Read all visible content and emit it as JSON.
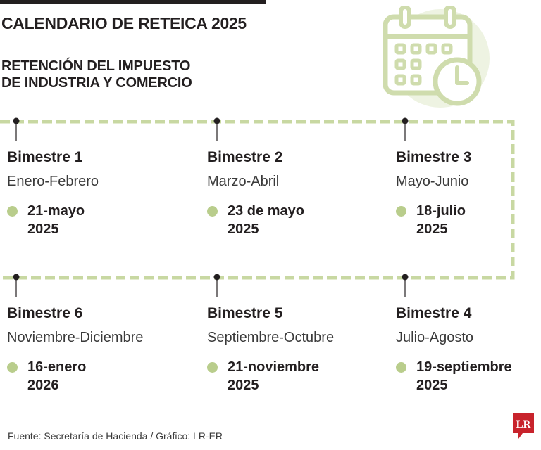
{
  "title": "CALENDARIO DE RETEICA 2025",
  "subtitle_lines": [
    "RETENCIÓN DEL IMPUESTO",
    "DE INDUSTRIA Y COMERCIO"
  ],
  "icons": {
    "calendar": "calendar-clock-icon",
    "bullet": "dot-icon",
    "logo": "lr-logo-icon"
  },
  "colors": {
    "accent": "#cfdcad",
    "bullet": "#b9cd8c",
    "timeline": "#c8d8a2",
    "logo": "#c8232c",
    "text": "#231f20"
  },
  "periods": [
    {
      "bimester": "Bimestre 1",
      "months": "Enero-Febrero",
      "date": "21-mayo",
      "year": "2025"
    },
    {
      "bimester": "Bimestre 2",
      "months": "Marzo-Abril",
      "date": "23 de mayo",
      "year": "2025"
    },
    {
      "bimester": "Bimestre 3",
      "months": "Mayo-Junio",
      "date": "18-julio",
      "year": "2025"
    },
    {
      "bimester": "Bimestre 6",
      "months": "Noviembre-Diciembre",
      "date": "16-enero",
      "year": "2026"
    },
    {
      "bimester": "Bimestre 5",
      "months": "Septiembre-Octubre",
      "date": "21-noviembre",
      "year": "2025"
    },
    {
      "bimester": "Bimestre 4",
      "months": "Julio-Agosto",
      "date": "19-septiembre",
      "year": "2025"
    }
  ],
  "footer": "Fuente: Secretaría de Hacienda / Gráfico: LR-ER",
  "logo_text": "LR"
}
